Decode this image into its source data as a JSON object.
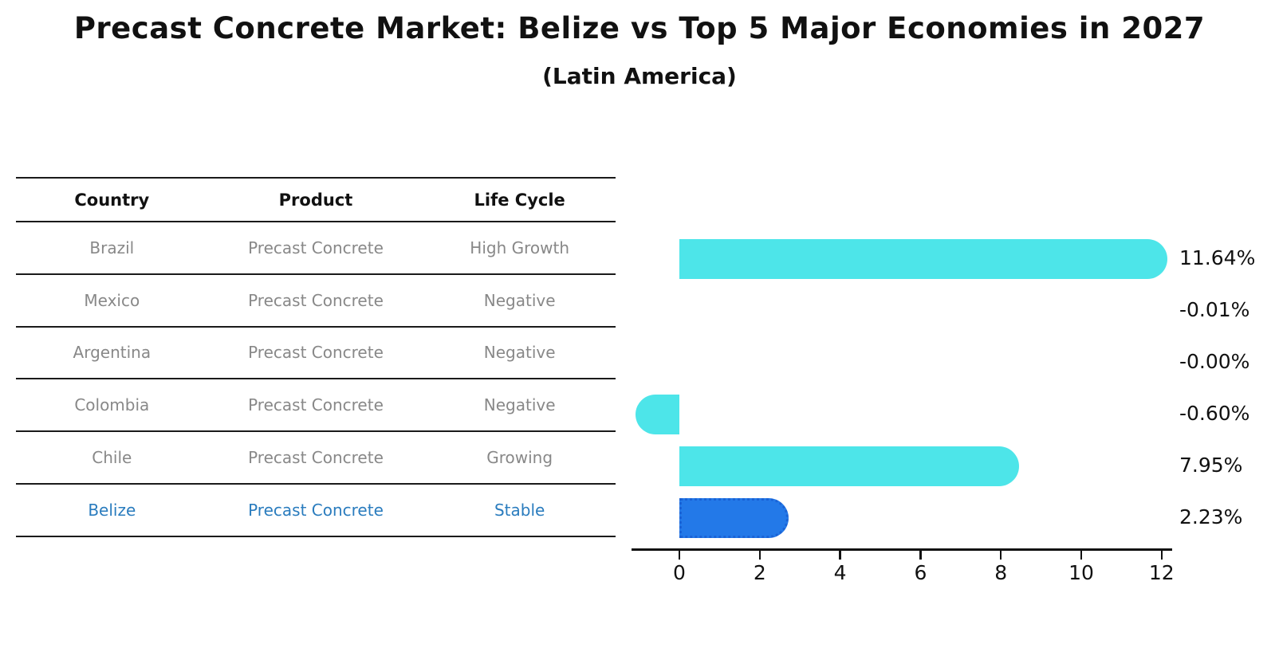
{
  "title": "Precast Concrete Market: Belize vs Top 5 Major Economies in 2027",
  "subtitle": "(Latin America)",
  "table": {
    "headers": [
      "Country",
      "Product",
      "Life Cycle"
    ],
    "rows": [
      {
        "country": "Brazil",
        "product": "Precast Concrete",
        "life_cycle": "High Growth",
        "highlight": false
      },
      {
        "country": "Mexico",
        "product": "Precast Concrete",
        "life_cycle": "Negative",
        "highlight": false
      },
      {
        "country": "Argentina",
        "product": "Precast Concrete",
        "life_cycle": "Negative",
        "highlight": false
      },
      {
        "country": "Colombia",
        "product": "Precast Concrete",
        "life_cycle": "Negative",
        "highlight": false
      },
      {
        "country": "Chile",
        "product": "Precast Concrete",
        "life_cycle": "Growing",
        "highlight": false
      },
      {
        "country": "Belize",
        "product": "Precast Concrete",
        "life_cycle": "Stable",
        "highlight": true
      }
    ]
  },
  "chart_data": {
    "type": "bar",
    "orientation": "horizontal",
    "title": "Precast Concrete Market: Belize vs Top 5 Major Economies in 2027 (Latin America)",
    "categories": [
      "Brazil",
      "Mexico",
      "Argentina",
      "Colombia",
      "Chile",
      "Belize"
    ],
    "values": [
      11.64,
      -0.01,
      0.0,
      -0.6,
      7.95,
      2.23
    ],
    "value_labels": [
      "11.64%",
      "-0.01%",
      "-0.00%",
      "-0.60%",
      "7.95%",
      "2.23%"
    ],
    "highlight_index": 5,
    "xlabel": "",
    "ylabel": "",
    "xticks": [
      0,
      2,
      4,
      6,
      8,
      10,
      12
    ],
    "xtick_labels": [
      "0",
      "2",
      "4",
      "6",
      "8",
      "10",
      "12"
    ],
    "xlim": [
      -1.2,
      12.3
    ],
    "grid": false,
    "legend": false,
    "colors": {
      "default_bar": "#4de5e9",
      "highlight_bar": "#2379e8",
      "highlight_bar_border": "#1a63d6",
      "highlight_text": "#2a7cbe",
      "table_text": "#888888",
      "axis": "#111111"
    }
  }
}
